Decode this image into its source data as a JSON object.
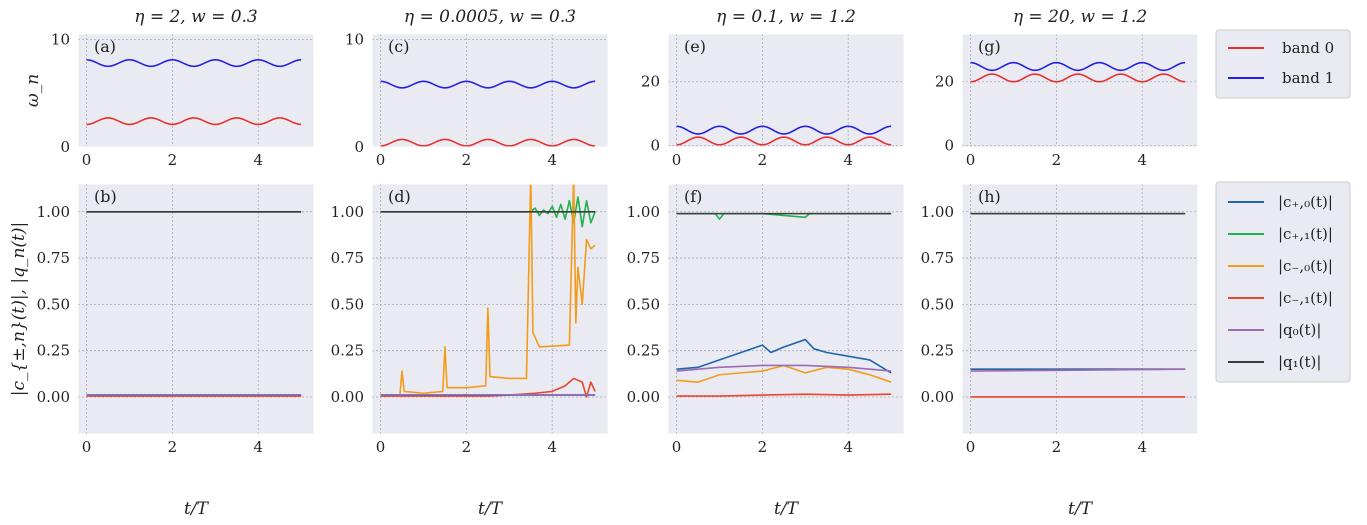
{
  "chart_data": {
    "type": "line",
    "columns": [
      {
        "title": "η = 2, w = 0.3",
        "top_panel": "(a)",
        "bottom_panel": "(b)",
        "top_ylim": [
          0,
          10.5
        ],
        "top_yticks": [
          "0",
          "10"
        ]
      },
      {
        "title": "η = 0.0005, w = 0.3",
        "top_panel": "(c)",
        "bottom_panel": "(d)",
        "top_ylim": [
          0,
          10.5
        ],
        "top_yticks": [
          "0",
          "10"
        ]
      },
      {
        "title": "η = 0.1, w = 1.2",
        "top_panel": "(e)",
        "bottom_panel": "(f)",
        "top_ylim": [
          -0.5,
          35
        ],
        "top_yticks": [
          "0",
          "20"
        ]
      },
      {
        "title": "η = 20, w = 1.2",
        "top_panel": "(g)",
        "bottom_panel": "(h)",
        "top_ylim": [
          -0.5,
          35
        ],
        "top_yticks": [
          "0",
          "20"
        ]
      }
    ],
    "x_ticks": [
      "0",
      "2",
      "4"
    ],
    "xlim": [
      -0.2,
      5.3
    ],
    "bottom_ylim": [
      -0.2,
      1.15
    ],
    "bottom_yticks": [
      "0.00",
      "0.25",
      "0.50",
      "0.75",
      "1.00"
    ],
    "xlabel": "t/T",
    "top_ylabel": "ω_n",
    "bottom_ylabel": "|c_{±,n}(t)|, |q_n(t)|",
    "top_legend": [
      {
        "label": "band 0",
        "color": "#e8302e"
      },
      {
        "label": "band 1",
        "color": "#2222e0"
      }
    ],
    "bottom_legend": [
      {
        "label": "|c₊,₀(t)|",
        "color": "#2166ac"
      },
      {
        "label": "|c₊,₁(t)|",
        "color": "#22b24c"
      },
      {
        "label": "|c₋,₀(t)|",
        "color": "#f39c1a"
      },
      {
        "label": "|c₋,₁(t)|",
        "color": "#e8462e"
      },
      {
        "label": "|q₀(t)|",
        "color": "#9b6bb5"
      },
      {
        "label": "|q₁(t)|",
        "color": "#3a3a3a"
      }
    ],
    "top_series": [
      {
        "band0": [
          2.4,
          0.3,
          0.5
        ],
        "band1": [
          7.8,
          0.3,
          0.5
        ]
      },
      {
        "band0": [
          0.4,
          0.3,
          0.5
        ],
        "band1": [
          5.8,
          0.3,
          0.5
        ]
      },
      {
        "band0": [
          1.4,
          1.2,
          0.5
        ],
        "band1": [
          4.8,
          1.2,
          0.5
        ]
      },
      {
        "band0": [
          21.2,
          1.2,
          0.5
        ],
        "band1": [
          24.8,
          1.2,
          0.5
        ]
      }
    ],
    "bottom_series": [
      {
        "c_plus_0": [
          [
            0,
            0.01
          ],
          [
            5,
            0.01
          ]
        ],
        "c_plus_1": [
          [
            0,
            1.0
          ],
          [
            5,
            1.0
          ]
        ],
        "c_minus_0": [
          [
            0,
            0.01
          ],
          [
            5,
            0.01
          ]
        ],
        "c_minus_1": [
          [
            0,
            0.005
          ],
          [
            5,
            0.005
          ]
        ],
        "q0": [
          [
            0,
            0.012
          ],
          [
            5,
            0.012
          ]
        ],
        "q1": [
          [
            0,
            1.0
          ],
          [
            5,
            1.0
          ]
        ]
      },
      {
        "c_plus_0": [
          [
            0,
            0.01
          ],
          [
            5,
            0.01
          ]
        ],
        "c_plus_1": [
          [
            0,
            1.0
          ],
          [
            3.5,
            1.0
          ],
          [
            3.6,
            1.02
          ],
          [
            3.7,
            0.98
          ],
          [
            3.8,
            1.01
          ],
          [
            3.9,
            0.99
          ],
          [
            4.0,
            1.03
          ],
          [
            4.1,
            0.97
          ],
          [
            4.2,
            1.04
          ],
          [
            4.3,
            0.96
          ],
          [
            4.4,
            1.06
          ],
          [
            4.5,
            0.94
          ],
          [
            4.6,
            1.08
          ],
          [
            4.7,
            0.92
          ],
          [
            4.8,
            1.06
          ],
          [
            4.9,
            0.94
          ],
          [
            5.0,
            1.0
          ]
        ],
        "c_minus_0": [
          [
            0,
            0.01
          ],
          [
            0.45,
            0.01
          ],
          [
            0.5,
            0.14
          ],
          [
            0.55,
            0.03
          ],
          [
            1.0,
            0.02
          ],
          [
            1.45,
            0.03
          ],
          [
            1.5,
            0.27
          ],
          [
            1.55,
            0.05
          ],
          [
            2.0,
            0.05
          ],
          [
            2.45,
            0.06
          ],
          [
            2.5,
            0.48
          ],
          [
            2.55,
            0.11
          ],
          [
            3.0,
            0.1
          ],
          [
            3.4,
            0.1
          ],
          [
            3.5,
            1.2
          ],
          [
            3.55,
            0.35
          ],
          [
            3.7,
            0.27
          ],
          [
            4.4,
            0.28
          ],
          [
            4.5,
            1.2
          ],
          [
            4.55,
            0.4
          ],
          [
            4.6,
            0.7
          ],
          [
            4.7,
            0.5
          ],
          [
            4.8,
            0.85
          ],
          [
            4.9,
            0.8
          ],
          [
            5.0,
            0.82
          ]
        ],
        "c_minus_1": [
          [
            0,
            0.005
          ],
          [
            2.5,
            0.005
          ],
          [
            3.0,
            0.01
          ],
          [
            3.6,
            0.02
          ],
          [
            4.0,
            0.03
          ],
          [
            4.3,
            0.06
          ],
          [
            4.5,
            0.1
          ],
          [
            4.7,
            0.08
          ],
          [
            4.8,
            0.0
          ],
          [
            4.9,
            0.08
          ],
          [
            5.0,
            0.03
          ]
        ],
        "q0": [
          [
            0,
            0.012
          ],
          [
            5,
            0.012
          ]
        ],
        "q1": [
          [
            0,
            1.0
          ],
          [
            5,
            1.0
          ]
        ]
      },
      {
        "c_plus_0": [
          [
            0,
            0.15
          ],
          [
            0.5,
            0.16
          ],
          [
            1.0,
            0.2
          ],
          [
            1.5,
            0.24
          ],
          [
            2.0,
            0.28
          ],
          [
            2.2,
            0.24
          ],
          [
            2.5,
            0.27
          ],
          [
            3.0,
            0.31
          ],
          [
            3.2,
            0.26
          ],
          [
            3.5,
            0.24
          ],
          [
            4.0,
            0.22
          ],
          [
            4.5,
            0.2
          ],
          [
            5.0,
            0.13
          ]
        ],
        "c_plus_1": [
          [
            0,
            0.99
          ],
          [
            0.9,
            0.99
          ],
          [
            1.0,
            0.96
          ],
          [
            1.1,
            0.99
          ],
          [
            2.0,
            0.99
          ],
          [
            3.0,
            0.97
          ],
          [
            3.1,
            0.99
          ],
          [
            4.0,
            0.99
          ],
          [
            5.0,
            0.99
          ]
        ],
        "c_minus_0": [
          [
            0,
            0.09
          ],
          [
            0.5,
            0.08
          ],
          [
            1.0,
            0.12
          ],
          [
            1.5,
            0.13
          ],
          [
            2.0,
            0.14
          ],
          [
            2.5,
            0.17
          ],
          [
            3.0,
            0.13
          ],
          [
            3.5,
            0.16
          ],
          [
            4.0,
            0.15
          ],
          [
            4.5,
            0.12
          ],
          [
            5.0,
            0.08
          ]
        ],
        "c_minus_1": [
          [
            0,
            0.005
          ],
          [
            1.0,
            0.005
          ],
          [
            2.0,
            0.01
          ],
          [
            3.0,
            0.015
          ],
          [
            4.0,
            0.01
          ],
          [
            5.0,
            0.015
          ]
        ],
        "q0": [
          [
            0,
            0.14
          ],
          [
            1.0,
            0.16
          ],
          [
            2.0,
            0.17
          ],
          [
            3.0,
            0.17
          ],
          [
            4.0,
            0.16
          ],
          [
            5.0,
            0.14
          ]
        ],
        "q1": [
          [
            0,
            0.99
          ],
          [
            5,
            0.99
          ]
        ]
      },
      {
        "c_plus_0": [
          [
            0,
            0.15
          ],
          [
            5,
            0.15
          ]
        ],
        "c_plus_1": [
          [
            0,
            0.99
          ],
          [
            5,
            0.99
          ]
        ],
        "c_minus_0": [
          [
            0,
            0.15
          ],
          [
            5,
            0.15
          ]
        ],
        "c_minus_1": [
          [
            0,
            0.0
          ],
          [
            5,
            0.0
          ]
        ],
        "q0": [
          [
            0,
            0.14
          ],
          [
            5,
            0.15
          ]
        ],
        "q1": [
          [
            0,
            0.99
          ],
          [
            5,
            0.99
          ]
        ]
      }
    ]
  }
}
